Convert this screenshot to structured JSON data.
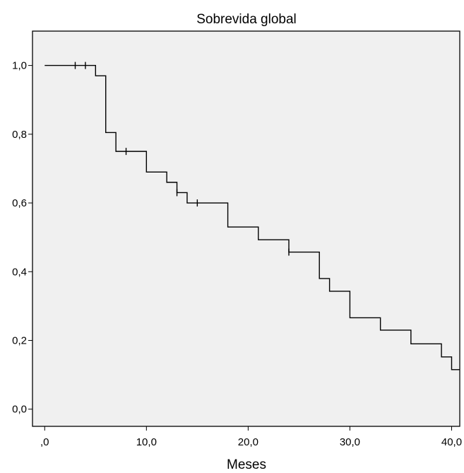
{
  "chart_data": {
    "type": "line",
    "title": "Sobrevida global",
    "xlabel": "Meses",
    "ylabel": "",
    "xlim": [
      -1.2,
      40.8
    ],
    "ylim": [
      -0.05,
      1.1
    ],
    "xticks": [
      0,
      10,
      20,
      30,
      40
    ],
    "xtick_labels": [
      ",0",
      "10,0",
      "20,0",
      "30,0",
      "40,0"
    ],
    "yticks": [
      0,
      0.2,
      0.4,
      0.6,
      0.8,
      1.0
    ],
    "ytick_labels": [
      "0,0",
      "0,2",
      "0,4",
      "0,6",
      "0,8",
      "1,0"
    ],
    "grid": false,
    "colors": {
      "plot_bg": "#f0f0f0",
      "line": "#000000",
      "frame": "#000000"
    },
    "series": [
      {
        "steps": [
          [
            0,
            1.0
          ],
          [
            5,
            0.97
          ],
          [
            6,
            0.805
          ],
          [
            7,
            0.75
          ],
          [
            10,
            0.69
          ],
          [
            12,
            0.66
          ],
          [
            13,
            0.63
          ],
          [
            14,
            0.6
          ],
          [
            18,
            0.53
          ],
          [
            21,
            0.493
          ],
          [
            24,
            0.457
          ],
          [
            27,
            0.38
          ],
          [
            28,
            0.343
          ],
          [
            30,
            0.266
          ],
          [
            33,
            0.23
          ],
          [
            36,
            0.19
          ],
          [
            39,
            0.152
          ],
          [
            40,
            0.115
          ]
        ],
        "x_end": 40.8,
        "censored": [
          [
            3,
            1.0
          ],
          [
            4,
            1.0
          ],
          [
            8,
            0.75
          ],
          [
            13,
            0.63
          ],
          [
            15,
            0.6
          ],
          [
            24,
            0.457
          ]
        ]
      }
    ]
  }
}
